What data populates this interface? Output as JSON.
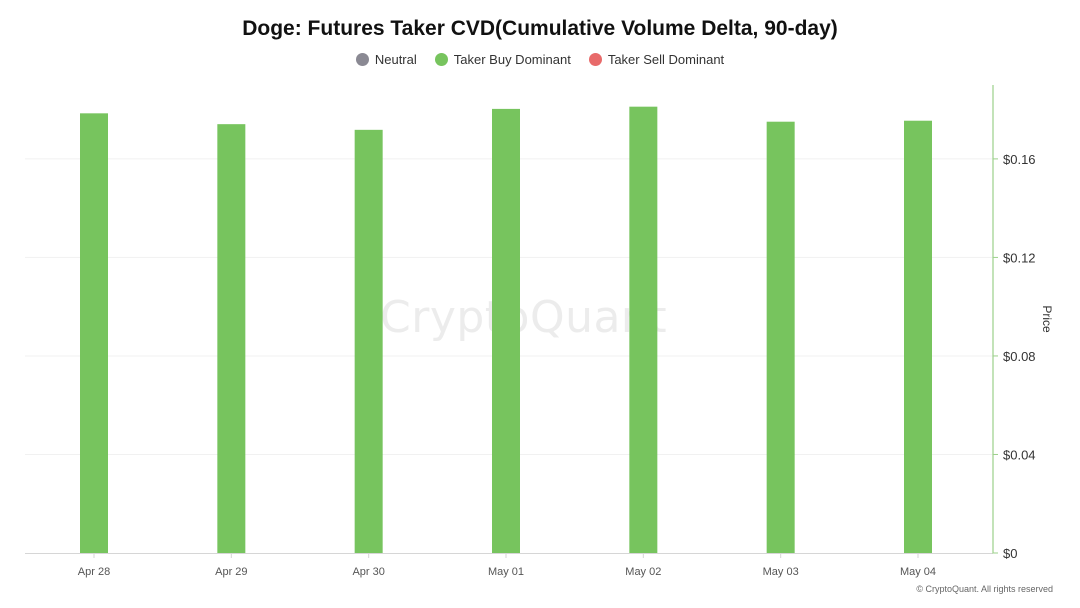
{
  "header": {
    "title": "Doge: Futures Taker CVD(Cumulative Volume Delta, 90-day)"
  },
  "legend": {
    "items": [
      {
        "label": "Neutral",
        "color": "#8a8993"
      },
      {
        "label": "Taker Buy Dominant",
        "color": "#77c45e"
      },
      {
        "label": "Taker Sell Dominant",
        "color": "#e86a6a"
      }
    ]
  },
  "watermark": "CryptoQuant",
  "footer": {
    "copyright": "© CryptoQuant. All rights reserved"
  },
  "chart_data": {
    "type": "bar",
    "title": "Doge: Futures Taker CVD(Cumulative Volume Delta, 90-day)",
    "categories": [
      "Apr 28",
      "Apr 29",
      "Apr 30",
      "May 01",
      "May 02",
      "May 03",
      "May 04"
    ],
    "values": [
      0.1785,
      0.1741,
      0.1718,
      0.1803,
      0.1812,
      0.1751,
      0.1755
    ],
    "value_state": "Taker Buy Dominant",
    "bar_color": "#77c45e",
    "ylabel": "Price",
    "ylim": [
      0,
      0.19
    ],
    "yticks": [
      0,
      0.04,
      0.08,
      0.12,
      0.16
    ],
    "ytick_labels": [
      "$0",
      "$0.04",
      "$0.08",
      "$0.12",
      "$0.16"
    ],
    "y_axis_side": "right",
    "grid": true,
    "legend_position": "top-center"
  }
}
